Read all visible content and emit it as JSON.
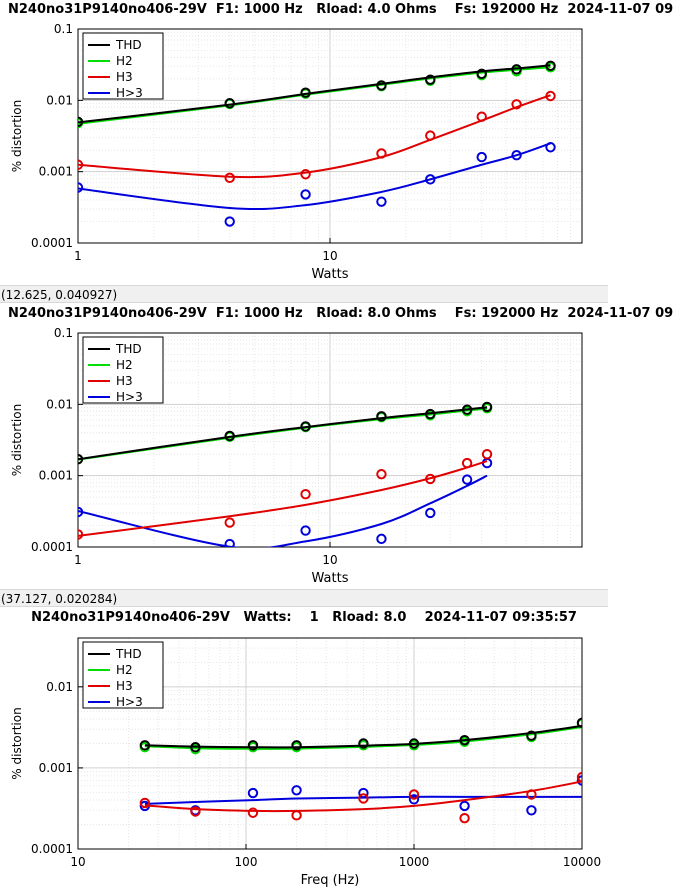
{
  "panels": [
    {
      "title": "N240no31P9140no406-29V  F1: 1000 Hz   Rload: 4.0 Ohms    Fs: 192000 Hz  2024-11-07 09",
      "coordinate_readout": "(12.625, 0.040927)"
    },
    {
      "title": "N240no31P9140no406-29V  F1: 1000 Hz   Rload: 8.0 Ohms    Fs: 192000 Hz  2024-11-07 09",
      "coordinate_readout": "(37.127, 0.020284)"
    },
    {
      "title": "N240no31P9140no406-29V   Watts:    1   Rload: 8.0    2024-11-07 09:35:57",
      "coordinate_readout": ""
    }
  ],
  "colors": {
    "THD": "#000000",
    "H2": "#00dd00",
    "H3": "#e00000",
    "H>3": "#0000dd"
  },
  "chart_data": [
    {
      "type": "scatter",
      "xlabel": "Watts",
      "ylabel": "% distortion",
      "xscale": "log",
      "yscale": "log",
      "xlim": [
        1,
        100
      ],
      "ylim": [
        0.0001,
        0.1
      ],
      "xticks": [
        1,
        10
      ],
      "xticklabels": [
        "1",
        "10"
      ],
      "yticks": [
        0.0001,
        0.001,
        0.01,
        0.1
      ],
      "yticklabels": [
        "0.0001",
        "0.001",
        "0.01",
        "0.1"
      ],
      "grid": true,
      "legend": "top-left",
      "series": [
        {
          "name": "THD",
          "x": [
            1,
            4,
            8,
            16,
            25,
            40,
            55,
            75
          ],
          "y": [
            0.005,
            0.0091,
            0.0128,
            0.0162,
            0.0195,
            0.0235,
            0.0272,
            0.0305
          ],
          "fit": [
            0.0049,
            0.0087,
            0.0123,
            0.017,
            0.021,
            0.0255,
            0.028,
            0.031
          ]
        },
        {
          "name": "H2",
          "x": [
            1,
            4,
            8,
            16,
            25,
            40,
            55,
            75
          ],
          "y": [
            0.0048,
            0.0089,
            0.0124,
            0.0158,
            0.0188,
            0.0225,
            0.0255,
            0.029
          ],
          "fit": [
            0.0047,
            0.0085,
            0.012,
            0.0165,
            0.0203,
            0.0245,
            0.0268,
            0.0292
          ]
        },
        {
          "name": "H3",
          "x": [
            1,
            4,
            8,
            16,
            25,
            40,
            55,
            75
          ],
          "y": [
            0.00125,
            0.00082,
            0.00092,
            0.0018,
            0.0032,
            0.0059,
            0.0088,
            0.0115
          ],
          "fit": [
            0.00125,
            0.00085,
            0.00097,
            0.0016,
            0.0028,
            0.0052,
            0.008,
            0.0118
          ]
        },
        {
          "name": "H>3",
          "x": [
            1,
            4,
            8,
            16,
            25,
            40,
            55,
            75
          ],
          "y": [
            0.0006,
            0.0002,
            0.00048,
            0.00038,
            0.00078,
            0.0016,
            0.0017,
            0.0022
          ],
          "fit": [
            0.00058,
            0.00031,
            0.00034,
            0.00052,
            0.00078,
            0.00125,
            0.0017,
            0.0025
          ]
        }
      ]
    },
    {
      "type": "scatter",
      "xlabel": "Watts",
      "ylabel": "% distortion",
      "xscale": "log",
      "yscale": "log",
      "xlim": [
        1,
        100
      ],
      "ylim": [
        0.0001,
        0.1
      ],
      "xticks": [
        1,
        10
      ],
      "xticklabels": [
        "1",
        "10"
      ],
      "yticks": [
        0.0001,
        0.001,
        0.01,
        0.1
      ],
      "yticklabels": [
        "0.0001",
        "0.001",
        "0.01",
        "0.1"
      ],
      "grid": true,
      "legend": "top-left",
      "series": [
        {
          "name": "THD",
          "x": [
            1,
            4,
            8,
            16,
            25,
            35,
            42
          ],
          "y": [
            0.0017,
            0.0036,
            0.0049,
            0.0068,
            0.0073,
            0.0084,
            0.0092
          ],
          "fit": [
            0.0017,
            0.0035,
            0.0048,
            0.0064,
            0.0075,
            0.0085,
            0.0091
          ]
        },
        {
          "name": "H2",
          "x": [
            1,
            4,
            8,
            16,
            25,
            35,
            42
          ],
          "y": [
            0.0017,
            0.0035,
            0.0048,
            0.0066,
            0.007,
            0.008,
            0.0088
          ],
          "fit": [
            0.00168,
            0.0034,
            0.0047,
            0.0062,
            0.0072,
            0.0082,
            0.0087
          ]
        },
        {
          "name": "H3",
          "x": [
            1,
            4,
            8,
            16,
            25,
            35,
            42
          ],
          "y": [
            0.00015,
            0.00022,
            0.00055,
            0.00105,
            0.0009,
            0.0015,
            0.002
          ],
          "fit": [
            0.000143,
            0.00027,
            0.00039,
            0.00063,
            0.00092,
            0.0013,
            0.0016
          ]
        },
        {
          "name": "H>3",
          "x": [
            1,
            4,
            8,
            16,
            25,
            35,
            42
          ],
          "y": [
            0.00031,
            0.00011,
            0.00017,
            0.00013,
            0.0003,
            0.00088,
            0.0015
          ],
          "fit": [
            0.00032,
            0.000101,
            0.00012,
            0.00021,
            0.00041,
            0.00072,
            0.001
          ]
        }
      ]
    },
    {
      "type": "scatter",
      "xlabel": "Freq (Hz)",
      "ylabel": "% distortion",
      "xscale": "log",
      "yscale": "log",
      "xlim": [
        10,
        10000
      ],
      "ylim": [
        0.0001,
        0.04
      ],
      "xticks": [
        10,
        100,
        1000,
        10000
      ],
      "xticklabels": [
        "10",
        "100",
        "1000",
        "10000"
      ],
      "yticks": [
        0.0001,
        0.001,
        0.01
      ],
      "yticklabels": [
        "0.0001",
        "0.001",
        "0.01"
      ],
      "grid": true,
      "legend": "top-left",
      "series": [
        {
          "name": "THD",
          "x": [
            25,
            50,
            110,
            200,
            500,
            1000,
            2000,
            5000,
            10000
          ],
          "y": [
            0.0019,
            0.0018,
            0.0019,
            0.0019,
            0.002,
            0.002,
            0.0022,
            0.0025,
            0.0036
          ],
          "fit": [
            0.0019,
            0.00183,
            0.0018,
            0.0018,
            0.00188,
            0.00198,
            0.0022,
            0.0027,
            0.0033
          ]
        },
        {
          "name": "H2",
          "x": [
            25,
            50,
            110,
            200,
            500,
            1000,
            2000,
            5000,
            10000
          ],
          "y": [
            0.0018,
            0.0017,
            0.0018,
            0.0018,
            0.0019,
            0.0019,
            0.0021,
            0.0024,
            0.0035
          ],
          "fit": [
            0.00185,
            0.00175,
            0.00172,
            0.00173,
            0.00182,
            0.00192,
            0.00212,
            0.0026,
            0.0032
          ]
        },
        {
          "name": "H3",
          "x": [
            25,
            50,
            110,
            200,
            500,
            1000,
            2000,
            5000,
            10000
          ],
          "y": [
            0.00037,
            0.00029,
            0.00028,
            0.00026,
            0.00042,
            0.00047,
            0.00024,
            0.00047,
            0.00077
          ],
          "fit": [
            0.000345,
            0.00031,
            0.000295,
            0.000295,
            0.00031,
            0.00034,
            0.0004,
            0.00052,
            0.00068
          ]
        },
        {
          "name": "H>3",
          "x": [
            25,
            50,
            110,
            200,
            500,
            1000,
            2000,
            5000,
            10000
          ],
          "y": [
            0.00034,
            0.0003,
            0.00049,
            0.00053,
            0.00049,
            0.00041,
            0.00034,
            0.0003,
            0.0007
          ],
          "fit": [
            0.00036,
            0.00038,
            0.0004,
            0.00042,
            0.00043,
            0.00044,
            0.00044,
            0.00044,
            0.00044
          ]
        }
      ]
    }
  ]
}
